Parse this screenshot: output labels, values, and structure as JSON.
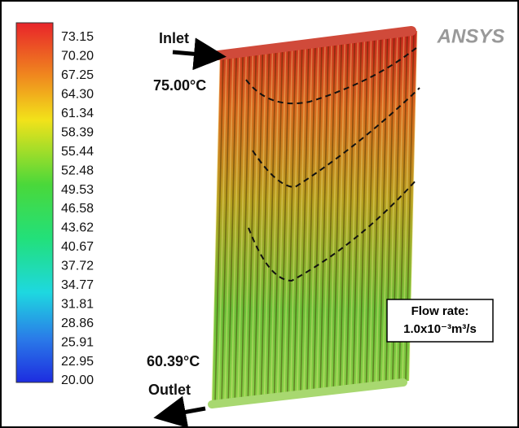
{
  "colorbar": {
    "labels": [
      "73.15",
      "70.20",
      "67.25",
      "64.30",
      "61.34",
      "58.39",
      "55.44",
      "52.48",
      "49.53",
      "46.58",
      "43.62",
      "40.67",
      "37.72",
      "34.77",
      "31.81",
      "28.86",
      "25.91",
      "22.95",
      "20.00"
    ]
  },
  "logo": "ANSYS",
  "inlet": {
    "label": "Inlet",
    "temperature": "75.00°C"
  },
  "outlet": {
    "label": "Outlet",
    "temperature": "60.39°C"
  },
  "flow_rate": {
    "label": "Flow rate:",
    "value": "1.0x10⁻³m³/s"
  }
}
